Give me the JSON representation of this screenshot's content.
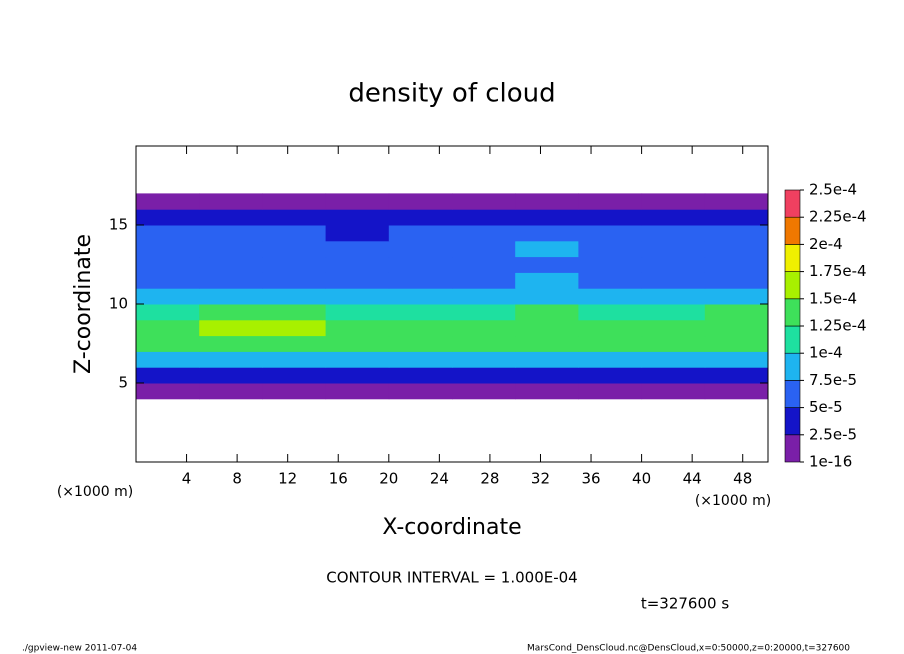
{
  "chart_data": {
    "type": "heatmap",
    "title": "density of cloud",
    "xlabel": "X-coordinate",
    "ylabel": "Z-coordinate",
    "x_unit_label": "(×1000 m)",
    "y_unit_label": "(×1000 m)",
    "xlim": [
      0,
      50
    ],
    "ylim": [
      0,
      20
    ],
    "xticks": [
      4,
      8,
      12,
      16,
      20,
      24,
      28,
      32,
      36,
      40,
      44,
      48
    ],
    "yticks": [
      5,
      10,
      15
    ],
    "x": [
      2.5,
      7.5,
      12.5,
      17.5,
      22.5,
      27.5,
      32.5,
      37.5,
      42.5,
      47.5
    ],
    "z": [
      0.5,
      1.5,
      2.5,
      3.5,
      4.5,
      5.5,
      6.5,
      7.5,
      8.5,
      9.5,
      10.5,
      11.5,
      12.5,
      13.5,
      14.5,
      15.5,
      16.5,
      17.5,
      18.5,
      19.5
    ],
    "values": [
      [
        null,
        null,
        null,
        null,
        null,
        null,
        null,
        null,
        null,
        null
      ],
      [
        null,
        null,
        null,
        null,
        null,
        null,
        null,
        null,
        null,
        null
      ],
      [
        null,
        null,
        null,
        null,
        null,
        null,
        null,
        null,
        null,
        null
      ],
      [
        null,
        null,
        null,
        null,
        null,
        null,
        null,
        null,
        null,
        null
      ],
      [
        1.5e-05,
        1.5e-05,
        1.5e-05,
        1.5e-05,
        1.5e-05,
        1.5e-05,
        1.5e-05,
        1.5e-05,
        1.5e-05,
        1.5e-05
      ],
      [
        3.5e-05,
        3e-05,
        3e-05,
        3.5e-05,
        3e-05,
        3.5e-05,
        4e-05,
        3.5e-05,
        3e-05,
        3.5e-05
      ],
      [
        9e-05,
        8.5e-05,
        9.5e-05,
        9e-05,
        8.5e-05,
        9e-05,
        9.5e-05,
        9e-05,
        8.5e-05,
        9.5e-05
      ],
      [
        0.00013,
        0.000135,
        0.000145,
        0.00013,
        0.000125,
        0.00013,
        0.000135,
        0.00013,
        0.00013,
        0.000135
      ],
      [
        0.00014,
        0.00015,
        0.00016,
        0.00014,
        0.000135,
        0.00014,
        0.000145,
        0.00014,
        0.00014,
        0.00014
      ],
      [
        0.00012,
        0.000125,
        0.00013,
        0.00012,
        0.000115,
        0.00012,
        0.000125,
        0.00012,
        0.00012,
        0.000125
      ],
      [
        9.5e-05,
        9e-05,
        9e-05,
        8.5e-05,
        9e-05,
        9.5e-05,
        9.5e-05,
        9e-05,
        9e-05,
        9.5e-05
      ],
      [
        7e-05,
        7e-05,
        6.5e-05,
        6.5e-05,
        7e-05,
        7e-05,
        7.5e-05,
        7e-05,
        7e-05,
        7e-05
      ],
      [
        6e-05,
        6e-05,
        5.5e-05,
        5.5e-05,
        6e-05,
        6e-05,
        7e-05,
        6e-05,
        6e-05,
        6e-05
      ],
      [
        5.5e-05,
        5.5e-05,
        5e-05,
        5e-05,
        5.5e-05,
        5.5e-05,
        7.5e-05,
        6e-05,
        5.5e-05,
        5.5e-05
      ],
      [
        5e-05,
        5e-05,
        5e-05,
        4.5e-05,
        5e-05,
        5e-05,
        6e-05,
        5.5e-05,
        5e-05,
        5e-05
      ],
      [
        3.5e-05,
        3.5e-05,
        3.5e-05,
        3.5e-05,
        3.5e-05,
        3.5e-05,
        3.5e-05,
        3.5e-05,
        3.5e-05,
        3.5e-05
      ],
      [
        1.5e-05,
        1.5e-05,
        1.5e-05,
        1.5e-05,
        1.5e-05,
        1.5e-05,
        1.5e-05,
        1.5e-05,
        1.5e-05,
        1.5e-05
      ],
      [
        null,
        null,
        null,
        null,
        null,
        null,
        null,
        null,
        null,
        null
      ],
      [
        null,
        null,
        null,
        null,
        null,
        null,
        null,
        null,
        null,
        null
      ],
      [
        null,
        null,
        null,
        null,
        null,
        null,
        null,
        null,
        null,
        null
      ]
    ],
    "levels": [
      {
        "value": 1e-16,
        "label": "1e-16"
      },
      {
        "value": 2.5e-05,
        "label": "2.5e-5"
      },
      {
        "value": 5e-05,
        "label": "5e-5"
      },
      {
        "value": 7.5e-05,
        "label": "7.5e-5"
      },
      {
        "value": 0.0001,
        "label": "1e-4"
      },
      {
        "value": 0.000125,
        "label": "1.25e-4"
      },
      {
        "value": 0.00015,
        "label": "1.5e-4"
      },
      {
        "value": 0.000175,
        "label": "1.75e-4"
      },
      {
        "value": 0.0002,
        "label": "2e-4"
      },
      {
        "value": 0.000225,
        "label": "2.25e-4"
      },
      {
        "value": 0.00025,
        "label": "2.5e-4"
      }
    ],
    "colors": [
      "#7a1fa8",
      "#1414c8",
      "#2a62f2",
      "#1eb4f0",
      "#1ee0a0",
      "#3ee05a",
      "#a8f000",
      "#f0f000",
      "#f07800",
      "#f04060"
    ],
    "annotations": [
      "CONTOUR INTERVAL = 1.000E-04",
      "t=327600 s"
    ],
    "footer_left": "./gpview-new  2011-07-04",
    "footer_right": "MarsCond_DensCloud.nc@DensCloud,x=0:50000,z=0:20000,t=327600"
  }
}
